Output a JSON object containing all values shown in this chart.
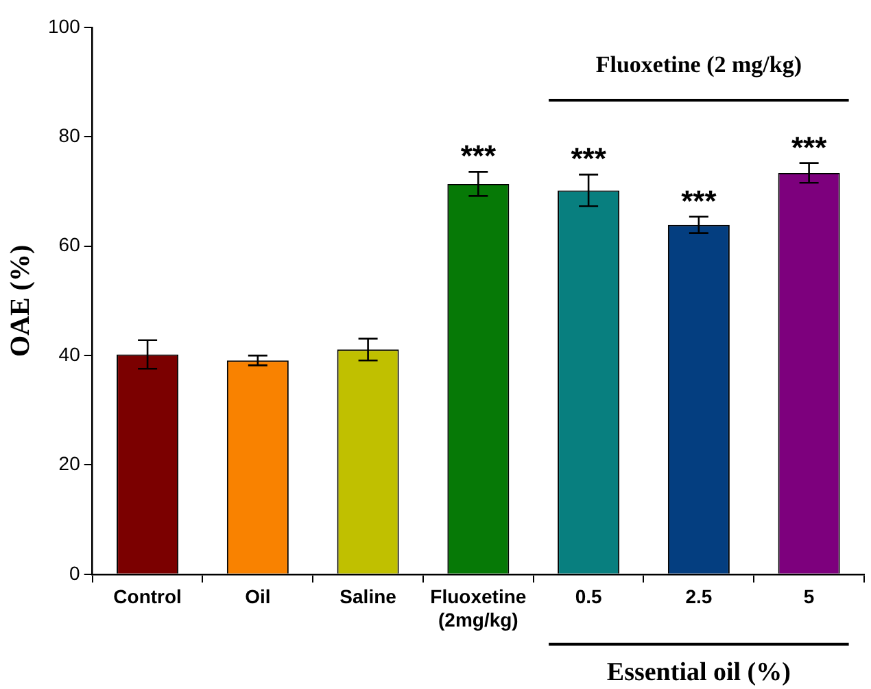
{
  "chart_data": {
    "type": "bar",
    "ylabel": "OAE (%)",
    "categories": [
      "Control",
      "Oil",
      "Saline",
      "Fluoxetine\n(2mg/kg)",
      "0.5",
      "2.5",
      "5"
    ],
    "values": [
      40.2,
      39.1,
      41.1,
      71.4,
      70.2,
      63.9,
      73.4
    ],
    "errors": [
      2.6,
      0.9,
      2.0,
      2.2,
      2.9,
      1.5,
      1.8
    ],
    "colors": [
      "#7b0000",
      "#f98200",
      "#c0c000",
      "#067906",
      "#087f7f",
      "#043e80",
      "#7d007d"
    ],
    "ylim": [
      0,
      100
    ],
    "yticks": [
      0,
      20,
      40,
      60,
      80,
      100
    ],
    "grid": false,
    "legend": false,
    "annotations": [
      "Fluoxetine (2 mg/kg)",
      "Essential oil (%)",
      {
        "text": "***",
        "x": "Fluoxetine\n(2mg/kg)",
        "y": 73.6
      },
      {
        "text": "***",
        "x": "0.5",
        "y": 73.1
      },
      {
        "text": "***",
        "x": "2.5",
        "y": 65.4
      },
      {
        "text": "***",
        "x": "5",
        "y": 75.2
      }
    ]
  }
}
